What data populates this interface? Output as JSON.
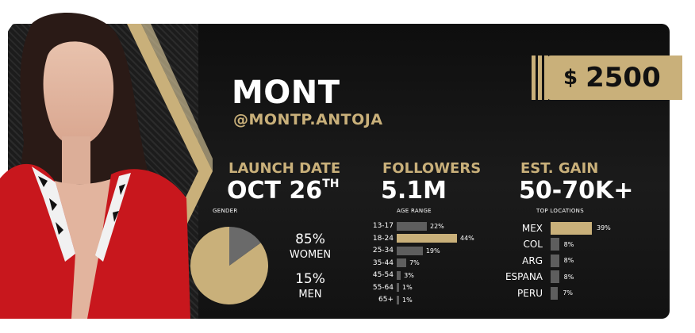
{
  "profile": {
    "name": "MONT",
    "handle": "@MONTP.ANTOJA",
    "price_currency": "$",
    "price_value": "2500"
  },
  "stats": {
    "launch_label": "LAUNCH DATE",
    "launch_value": "OCT 26",
    "launch_suffix": "TH",
    "followers_label": "FOLLOWERS",
    "followers_value": "5.1M",
    "gain_label": "EST. GAIN",
    "gain_value": "50-70K+"
  },
  "gender": {
    "title": "GENDER",
    "women_pct": "85%",
    "women_label": "WOMEN",
    "men_pct": "15%",
    "men_label": "MEN"
  },
  "age_range": {
    "title": "AGE RANGE",
    "rows": [
      {
        "label": "13-17",
        "value": 22,
        "pct": "22%"
      },
      {
        "label": "18-24",
        "value": 44,
        "pct": "44%"
      },
      {
        "label": "25-34",
        "value": 19,
        "pct": "19%"
      },
      {
        "label": "35-44",
        "value": 7,
        "pct": "7%"
      },
      {
        "label": "45-54",
        "value": 3,
        "pct": "3%"
      },
      {
        "label": "55-64",
        "value": 1,
        "pct": "1%"
      },
      {
        "label": "65+",
        "value": 1,
        "pct": "1%"
      }
    ]
  },
  "locations": {
    "title": "TOP LOCATIONS",
    "rows": [
      {
        "label": "MEX",
        "value": 39,
        "pct": "39%"
      },
      {
        "label": "COL",
        "value": 8,
        "pct": "8%"
      },
      {
        "label": "ARG",
        "value": 8,
        "pct": "8%"
      },
      {
        "label": "ESPANA",
        "value": 8,
        "pct": "8%"
      },
      {
        "label": "PERU",
        "value": 7,
        "pct": "7%"
      }
    ]
  },
  "chart_data": [
    {
      "type": "pie",
      "title": "GENDER",
      "categories": [
        "WOMEN",
        "MEN"
      ],
      "values": [
        85,
        15
      ]
    },
    {
      "type": "bar",
      "title": "AGE RANGE",
      "categories": [
        "13-17",
        "18-24",
        "25-34",
        "35-44",
        "45-54",
        "55-64",
        "65+"
      ],
      "values": [
        22,
        44,
        19,
        7,
        3,
        1,
        1
      ]
    },
    {
      "type": "bar",
      "title": "TOP LOCATIONS",
      "categories": [
        "MEX",
        "COL",
        "ARG",
        "ESPANA",
        "PERU"
      ],
      "values": [
        39,
        8,
        8,
        8,
        7
      ]
    }
  ],
  "colors": {
    "gold": "#c9b07a",
    "gray": "#5e5e5e",
    "background": "#141414",
    "jacket_red": "#c8171d"
  }
}
